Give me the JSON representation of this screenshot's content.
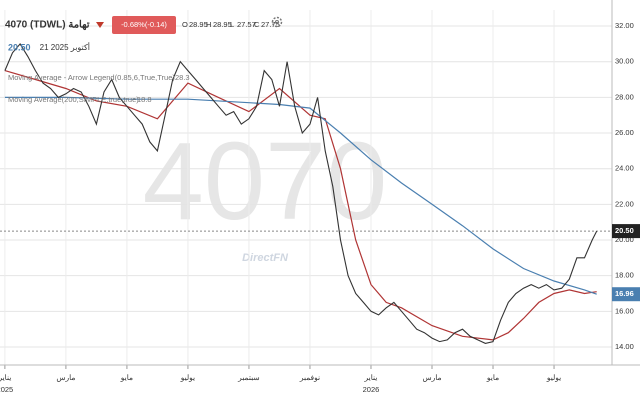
{
  "chart_data": {
    "type": "line",
    "title": "4070 (TDWL) تهامة",
    "change_label": "-0.68%(-0.14)",
    "ohlc": [
      {
        "label": "O",
        "value": 28.95
      },
      {
        "label": "H",
        "value": 28.95
      },
      {
        "label": "L",
        "value": 27.57
      },
      {
        "label": "C",
        "value": 27.75
      }
    ],
    "last_price": {
      "value": 20.5,
      "label": "20.50"
    },
    "date_label": "21 2025 أكتوبر",
    "watermark": "4070",
    "brand": "DirectFN",
    "price": {
      "color": "#333333",
      "x": [
        0,
        0.25,
        0.5,
        0.75,
        1,
        1.25,
        1.5,
        1.75,
        2,
        2.25,
        2.5,
        2.75,
        3,
        3.25,
        3.5,
        3.75,
        4,
        4.25,
        4.5,
        4.75,
        5,
        5.25,
        5.5,
        5.75,
        6,
        6.25,
        6.5,
        6.75,
        7,
        7.25,
        7.5,
        7.75,
        8,
        8.25,
        8.5,
        8.75,
        9,
        9.25,
        9.5,
        9.75,
        10,
        10.25,
        10.5,
        10.75,
        11,
        11.25,
        11.5,
        11.75,
        12,
        12.25,
        12.5,
        12.75,
        13,
        13.25,
        13.5,
        13.75,
        14,
        14.25,
        14.5,
        14.75,
        15,
        15.25,
        15.5,
        15.75,
        16,
        16.25,
        16.5,
        16.75,
        17,
        17.25,
        17.5,
        17.75,
        18,
        18.25,
        18.5,
        18.75,
        19,
        19.25,
        19.4
      ],
      "values": [
        29.5,
        30.5,
        31,
        30.3,
        29.5,
        28.8,
        28.5,
        28,
        28.2,
        28.5,
        28.3,
        27.5,
        26.5,
        28.3,
        29,
        28,
        27.5,
        27,
        26.5,
        25.5,
        25,
        27,
        29,
        30,
        29.5,
        29,
        28.5,
        28,
        27.5,
        27,
        27.2,
        26.5,
        26.8,
        27.5,
        29.5,
        29,
        27.5,
        30,
        27.5,
        26,
        26.5,
        28,
        25,
        23,
        20,
        18,
        17,
        16.5,
        16,
        15.8,
        16.2,
        16.5,
        16,
        15.5,
        15,
        14.8,
        14.5,
        14.3,
        14.4,
        14.8,
        15,
        14.6,
        14.4,
        14.2,
        14.3,
        15.5,
        16.5,
        17,
        17.3,
        17.5,
        17.3,
        17.5,
        17.2,
        17.3,
        17.8,
        19,
        19,
        20,
        20.5
      ]
    },
    "series": [
      {
        "name": "Moving Average - Arrow Legend(0.85,6,True,True)",
        "legend_value": "28.3",
        "color": "#b03535",
        "x": [
          0,
          1,
          2,
          3,
          4,
          5,
          6,
          7,
          8,
          9,
          10,
          10.5,
          11,
          11.5,
          12,
          12.5,
          13,
          14,
          15,
          16,
          16.5,
          17,
          17.5,
          18,
          18.5,
          19,
          19.4
        ],
        "values": [
          29.5,
          29,
          28.5,
          27.8,
          27.5,
          26.8,
          28.8,
          28,
          27.2,
          28.5,
          27,
          26.8,
          24,
          20,
          17.5,
          16.5,
          16.2,
          15.2,
          14.6,
          14.4,
          14.8,
          15.6,
          16.5,
          17,
          17.2,
          17,
          17.1
        ]
      },
      {
        "name": "Moving Average(200,SIMPLE,true,true)",
        "legend_value": "18.8",
        "color": "#4a7fb0",
        "x": [
          0,
          2,
          4,
          6,
          8,
          9,
          10,
          11,
          12,
          13,
          14,
          15,
          16,
          17,
          18,
          19,
          19.4
        ],
        "values": [
          28,
          28,
          27.9,
          27.9,
          27.7,
          27.6,
          27.4,
          26,
          24.5,
          23.2,
          22,
          20.8,
          19.5,
          18.4,
          17.7,
          17.2,
          16.96
        ],
        "last_label": "16.96"
      }
    ],
    "xlim": [
      -0.16,
      19.9
    ],
    "xticks": [
      {
        "value": 0,
        "label": "يناير"
      },
      {
        "value": 2,
        "label": "مارس"
      },
      {
        "value": 4,
        "label": "مايو"
      },
      {
        "value": 6,
        "label": "يوليو"
      },
      {
        "value": 8,
        "label": "سبتمبر"
      },
      {
        "value": 10,
        "label": "نوفمبر"
      },
      {
        "value": 12,
        "label": "يناير"
      },
      {
        "value": 14,
        "label": "مارس"
      },
      {
        "value": 16,
        "label": "مايو"
      },
      {
        "value": 18,
        "label": "يوليو"
      }
    ],
    "year_labels": [
      {
        "value": 0,
        "label": "2025"
      },
      {
        "value": 12,
        "label": "2026"
      }
    ],
    "ylim": [
      12.99,
      32.9
    ],
    "yticks": [
      {
        "value": 14,
        "label": "14.00"
      },
      {
        "value": 16,
        "label": "16.00"
      },
      {
        "value": 18,
        "label": "18.00"
      },
      {
        "value": 20,
        "label": "20.00"
      },
      {
        "value": 22,
        "label": "22.00"
      },
      {
        "value": 24,
        "label": "24.00"
      },
      {
        "value": 26,
        "label": "26.00"
      },
      {
        "value": 28,
        "label": "28.00"
      },
      {
        "value": 30,
        "label": "30.00"
      },
      {
        "value": 32,
        "label": "32.00"
      }
    ],
    "grid": true
  }
}
